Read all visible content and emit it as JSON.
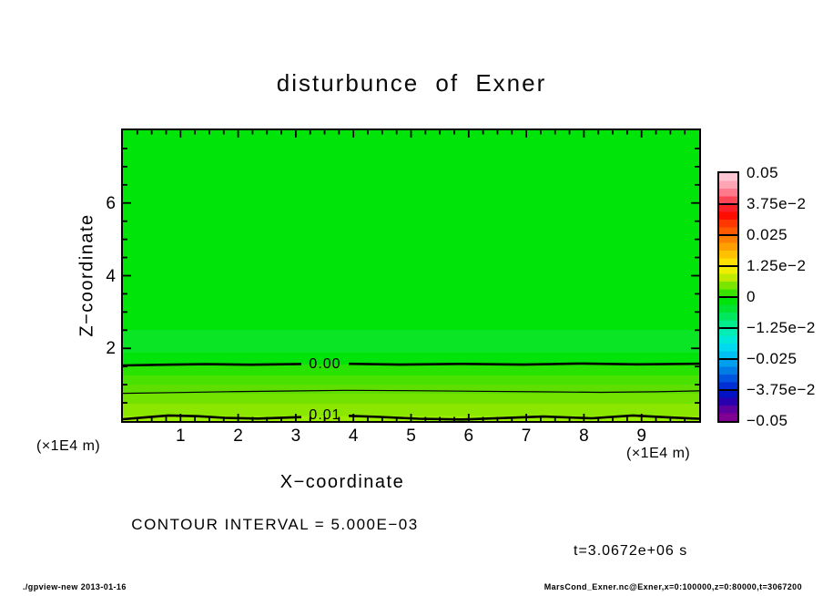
{
  "header": {
    "title": "disturbunce of Exner"
  },
  "axes": {
    "x": {
      "title": "X−coordinate",
      "unit_left": "(×1E4 m)",
      "unit_right": "(×1E4 m)",
      "tick_labels": [
        "1",
        "2",
        "3",
        "4",
        "5",
        "6",
        "7",
        "8",
        "9"
      ],
      "range": [
        0,
        10
      ],
      "minor_step": 0.25
    },
    "z": {
      "title": "Z−coordinate",
      "tick_labels": [
        "2",
        "4",
        "6"
      ],
      "range": [
        0,
        8
      ],
      "minor_step": 0.5
    }
  },
  "colorbar": {
    "labels": [
      "0.05",
      "3.75e−2",
      "0.025",
      "1.25e−2",
      "0",
      "−1.25e−2",
      "−0.025",
      "−3.75e−2",
      "−0.05"
    ],
    "segments": [
      [
        "#ffc6d2",
        "#ffa4b2",
        "#ff7a8a",
        "#ff4656"
      ],
      [
        "#ff1f28",
        "#ff0d00",
        "#ff3800",
        "#ff5a00"
      ],
      [
        "#ff8000",
        "#ffa000",
        "#ffc000",
        "#ffe000"
      ],
      [
        "#f0ee00",
        "#c0ea00",
        "#7ce500",
        "#38e300"
      ],
      [
        "#00e40a",
        "#00e232",
        "#00e75e",
        "#00ec8c"
      ],
      [
        "#00edb4",
        "#00e8d8",
        "#00d9ee",
        "#00bff2"
      ],
      [
        "#00a0ee",
        "#007ce6",
        "#0054dd",
        "#0030d5"
      ],
      [
        "#0012c4",
        "#2a00ae",
        "#5c009e",
        "#7f0092"
      ]
    ]
  },
  "annotations": {
    "contour_interval": "CONTOUR INTERVAL = 5.000E−03",
    "time": "t=3.0672e+06 s"
  },
  "footer": {
    "left": "./gpview-new  2013-01-16",
    "right": "MarsCond_Exner.nc@Exner,x=0:100000,z=0:80000,t=3067200"
  },
  "chart_data": {
    "type": "heatmap",
    "subtype": "filled-contour-with-lines",
    "title": "disturbunce of Exner",
    "xlabel": "X−coordinate (×1E4 m)",
    "ylabel": "Z−coordinate (×1E4 m)",
    "xlim": [
      0,
      10
    ],
    "ylim": [
      0,
      8
    ],
    "x_major_ticks": [
      1,
      2,
      3,
      4,
      5,
      6,
      7,
      8,
      9
    ],
    "z_major_ticks": [
      2,
      4,
      6
    ],
    "contour_interval": 0.005,
    "colorbar_levels": [
      0.05,
      0.0375,
      0.025,
      0.0125,
      0,
      -0.0125,
      -0.025,
      -0.0375,
      -0.05
    ],
    "contours": [
      {
        "level": 0.0,
        "label": "0.00",
        "z_x1e4m": 1.56,
        "line": "thick"
      },
      {
        "level": 0.005,
        "label": "",
        "z_x1e4m": 0.8,
        "line": "thin"
      },
      {
        "level": 0.01,
        "label": "0.01",
        "z_x1e4m": 0.13,
        "line": "thick"
      }
    ],
    "field_summary": "Nearly horizontally uniform; slightly negative values aloft, increasing toward the bottom boundary, exceeding +0.01 near z=0",
    "profile_x_uniform": [
      {
        "z": 8.0,
        "value": -0.001
      },
      {
        "z": 2.5,
        "value": -0.004
      },
      {
        "z": 1.56,
        "value": 0.0
      },
      {
        "z": 0.8,
        "value": 0.005
      },
      {
        "z": 0.13,
        "value": 0.01
      },
      {
        "z": 0.0,
        "value": 0.012
      }
    ],
    "tone_bands": [
      {
        "z_top": 8.0,
        "z_bottom": 2.51,
        "color": "#00e40a"
      },
      {
        "z_top": 2.51,
        "z_bottom": 1.88,
        "color": "#0ae626"
      },
      {
        "z_top": 1.88,
        "z_bottom": 1.56,
        "color": "#00e40a"
      },
      {
        "z_top": 1.56,
        "z_bottom": 1.26,
        "color": "#28e300"
      },
      {
        "z_top": 1.26,
        "z_bottom": 1.0,
        "color": "#49e100"
      },
      {
        "z_top": 1.0,
        "z_bottom": 0.75,
        "color": "#5fdf00"
      },
      {
        "z_top": 0.75,
        "z_bottom": 0.48,
        "color": "#74e200"
      },
      {
        "z_top": 0.48,
        "z_bottom": 0.14,
        "color": "#8ce700"
      },
      {
        "z_top": 0.14,
        "z_bottom": 0.0,
        "color": "#9cef00"
      }
    ],
    "legend_position": "right-colorbar",
    "grid": false
  }
}
